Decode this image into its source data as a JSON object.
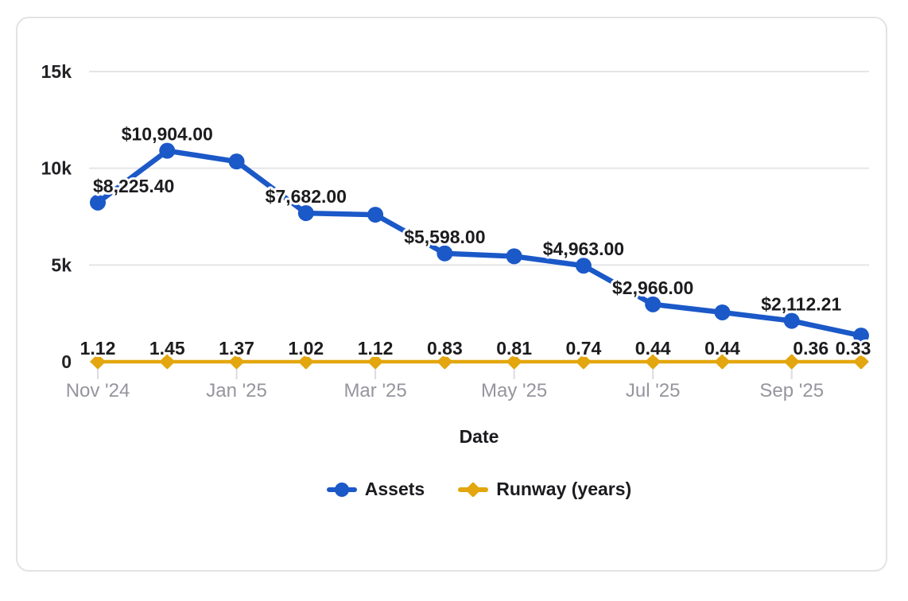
{
  "window": {
    "background": "#ffffff",
    "card_border": "#e3e3e6",
    "grid_color": "#e5e5e8"
  },
  "chart_data": {
    "type": "line",
    "xlabel": "Date",
    "ylabel": "",
    "ylim": [
      0,
      15000
    ],
    "grid": true,
    "legend_position": "bottom",
    "y_ticks": [
      {
        "value": 0,
        "label": "0"
      },
      {
        "value": 5000,
        "label": "5k"
      },
      {
        "value": 10000,
        "label": "10k"
      },
      {
        "value": 15000,
        "label": "15k"
      }
    ],
    "x_categories": [
      "Nov '24",
      "Dec '24",
      "Jan '25",
      "Feb '25",
      "Mar '25",
      "Apr '25",
      "May '25",
      "Jun '25",
      "Jul '25",
      "Aug '25",
      "Sep '25",
      "Oct '25"
    ],
    "x_axis_ticks": [
      {
        "index": 0,
        "label": "Nov '24"
      },
      {
        "index": 2,
        "label": "Jan '25"
      },
      {
        "index": 4,
        "label": "Mar '25"
      },
      {
        "index": 6,
        "label": "May '25"
      },
      {
        "index": 8,
        "label": "Jul '25"
      },
      {
        "index": 10,
        "label": "Sep '25"
      }
    ],
    "series": [
      {
        "name": "Assets",
        "color": "#1b58c8",
        "marker": "circle",
        "values": [
          8225.4,
          10904.0,
          10350,
          7682.0,
          7600,
          5598.0,
          5450,
          4963.0,
          2966.0,
          2550,
          2112.21,
          1350
        ],
        "point_labels": [
          "$8,225.40",
          "$10,904.00",
          null,
          "$7,682.00",
          null,
          "$5,598.00",
          null,
          "$4,963.00",
          "$2,966.00",
          null,
          "$2,112.21",
          null
        ]
      },
      {
        "name": "Runway (years)",
        "color": "#e3a60e",
        "marker": "diamond",
        "values": [
          1.12,
          1.45,
          1.37,
          1.02,
          1.12,
          0.83,
          0.81,
          0.74,
          0.44,
          0.44,
          0.36,
          0.33
        ],
        "point_labels": [
          "1.12",
          "1.45",
          "1.37",
          "1.02",
          "1.12",
          "0.83",
          "0.81",
          "0.74",
          "0.44",
          "0.44",
          "0.36",
          "0.33"
        ]
      }
    ]
  }
}
